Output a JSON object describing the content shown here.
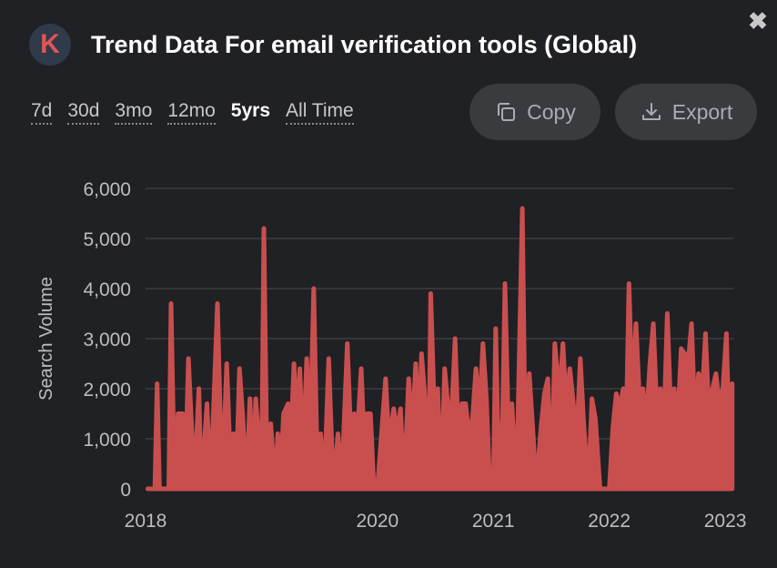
{
  "header": {
    "logo_letter": "K",
    "title": "Trend Data For email verification tools (Global)"
  },
  "ranges": [
    "7d",
    "30d",
    "3mo",
    "12mo",
    "5yrs",
    "All Time"
  ],
  "active_range": "5yrs",
  "buttons": {
    "copy": "Copy",
    "export": "Export"
  },
  "colors": {
    "background": "#202124",
    "series": "#c94f4f",
    "button_bg": "#3a3b3e"
  },
  "icons": [
    "close-icon",
    "copy-icon",
    "download-icon"
  ],
  "chart_data": {
    "type": "area",
    "ylabel": "Search Volume",
    "xlabel": "",
    "x_range": [
      2018.0,
      2023.07
    ],
    "ylim": [
      0,
      6000
    ],
    "y_ticks": [
      0,
      1000,
      2000,
      3000,
      4000,
      5000,
      6000
    ],
    "y_tick_labels": [
      "0",
      "1,000",
      "2,000",
      "3,000",
      "4,000",
      "5,000",
      "6,000"
    ],
    "x_ticks": [
      2018,
      2020,
      2021,
      2022,
      2023
    ],
    "x_tick_labels": [
      "2018",
      "2020",
      "2021",
      "2022",
      "2023"
    ],
    "grid": true,
    "legend": "none",
    "series": [
      {
        "points": [
          [
            2018.02,
            0
          ],
          [
            2018.08,
            0
          ],
          [
            2018.1,
            2100
          ],
          [
            2018.12,
            0
          ],
          [
            2018.2,
            0
          ],
          [
            2018.22,
            3700
          ],
          [
            2018.25,
            0
          ],
          [
            2018.28,
            1500
          ],
          [
            2018.32,
            1500
          ],
          [
            2018.34,
            0
          ],
          [
            2018.37,
            2600
          ],
          [
            2018.4,
            1100
          ],
          [
            2018.42,
            0
          ],
          [
            2018.46,
            2000
          ],
          [
            2018.48,
            0
          ],
          [
            2018.53,
            1700
          ],
          [
            2018.56,
            0
          ],
          [
            2018.62,
            3700
          ],
          [
            2018.66,
            0
          ],
          [
            2018.7,
            2500
          ],
          [
            2018.74,
            0
          ],
          [
            2018.76,
            1100
          ],
          [
            2018.78,
            0
          ],
          [
            2018.81,
            2400
          ],
          [
            2018.84,
            1400
          ],
          [
            2018.87,
            0
          ],
          [
            2018.9,
            1800
          ],
          [
            2018.93,
            0
          ],
          [
            2018.95,
            1800
          ],
          [
            2018.97,
            1200
          ],
          [
            2019.0,
            0
          ],
          [
            2019.02,
            5200
          ],
          [
            2019.05,
            0
          ],
          [
            2019.08,
            1300
          ],
          [
            2019.12,
            0
          ],
          [
            2019.14,
            1100
          ],
          [
            2019.16,
            0
          ],
          [
            2019.19,
            1500
          ],
          [
            2019.23,
            1700
          ],
          [
            2019.25,
            800
          ],
          [
            2019.28,
            2500
          ],
          [
            2019.3,
            1200
          ],
          [
            2019.33,
            2400
          ],
          [
            2019.36,
            600
          ],
          [
            2019.39,
            2600
          ],
          [
            2019.42,
            1000
          ],
          [
            2019.45,
            4000
          ],
          [
            2019.48,
            600
          ],
          [
            2019.51,
            1100
          ],
          [
            2019.54,
            0
          ],
          [
            2019.58,
            2600
          ],
          [
            2019.62,
            0
          ],
          [
            2019.66,
            1100
          ],
          [
            2019.69,
            0
          ],
          [
            2019.74,
            2900
          ],
          [
            2019.77,
            1100
          ],
          [
            2019.8,
            1500
          ],
          [
            2019.83,
            1200
          ],
          [
            2019.86,
            2400
          ],
          [
            2019.89,
            700
          ],
          [
            2019.91,
            1500
          ],
          [
            2019.94,
            1500
          ],
          [
            2019.97,
            0
          ],
          [
            2020.0,
            0
          ],
          [
            2020.07,
            2200
          ],
          [
            2020.1,
            900
          ],
          [
            2020.14,
            1600
          ],
          [
            2020.17,
            1100
          ],
          [
            2020.2,
            1600
          ],
          [
            2020.23,
            0
          ],
          [
            2020.27,
            2200
          ],
          [
            2020.3,
            1100
          ],
          [
            2020.33,
            2500
          ],
          [
            2020.36,
            1100
          ],
          [
            2020.38,
            2700
          ],
          [
            2020.41,
            1800
          ],
          [
            2020.44,
            0
          ],
          [
            2020.46,
            3900
          ],
          [
            2020.49,
            1600
          ],
          [
            2020.52,
            2000
          ],
          [
            2020.55,
            0
          ],
          [
            2020.58,
            2400
          ],
          [
            2020.61,
            1600
          ],
          [
            2020.64,
            1500
          ],
          [
            2020.67,
            3000
          ],
          [
            2020.7,
            900
          ],
          [
            2020.73,
            1700
          ],
          [
            2020.76,
            1700
          ],
          [
            2020.79,
            1100
          ],
          [
            2020.82,
            1400
          ],
          [
            2020.85,
            2400
          ],
          [
            2020.88,
            1500
          ],
          [
            2020.91,
            2900
          ],
          [
            2020.94,
            1800
          ],
          [
            2020.97,
            0
          ],
          [
            2021.0,
            0
          ],
          [
            2021.02,
            3200
          ],
          [
            2021.05,
            0
          ],
          [
            2021.08,
            1400
          ],
          [
            2021.1,
            4100
          ],
          [
            2021.13,
            1200
          ],
          [
            2021.16,
            1700
          ],
          [
            2021.2,
            0
          ],
          [
            2021.25,
            5600
          ],
          [
            2021.28,
            0
          ],
          [
            2021.31,
            2300
          ],
          [
            2021.34,
            1200
          ],
          [
            2021.37,
            0
          ],
          [
            2021.41,
            1200
          ],
          [
            2021.44,
            1900
          ],
          [
            2021.47,
            2200
          ],
          [
            2021.5,
            0
          ],
          [
            2021.53,
            2900
          ],
          [
            2021.57,
            1800
          ],
          [
            2021.6,
            2900
          ],
          [
            2021.63,
            1600
          ],
          [
            2021.66,
            2400
          ],
          [
            2021.69,
            1700
          ],
          [
            2021.72,
            1000
          ],
          [
            2021.75,
            2600
          ],
          [
            2021.78,
            1300
          ],
          [
            2021.82,
            0
          ],
          [
            2021.85,
            1800
          ],
          [
            2021.88,
            1400
          ],
          [
            2021.92,
            0
          ],
          [
            2021.95,
            0
          ],
          [
            2022.0,
            0
          ],
          [
            2022.03,
            1200
          ],
          [
            2022.06,
            1900
          ],
          [
            2022.09,
            1600
          ],
          [
            2022.12,
            2000
          ],
          [
            2022.15,
            1700
          ],
          [
            2022.17,
            4100
          ],
          [
            2022.2,
            1800
          ],
          [
            2022.23,
            3300
          ],
          [
            2022.26,
            1800
          ],
          [
            2022.29,
            2000
          ],
          [
            2022.32,
            1300
          ],
          [
            2022.35,
            2500
          ],
          [
            2022.38,
            3300
          ],
          [
            2022.41,
            1600
          ],
          [
            2022.44,
            2000
          ],
          [
            2022.47,
            1200
          ],
          [
            2022.5,
            3500
          ],
          [
            2022.53,
            1600
          ],
          [
            2022.56,
            2000
          ],
          [
            2022.59,
            1300
          ],
          [
            2022.62,
            2800
          ],
          [
            2022.65,
            2700
          ],
          [
            2022.68,
            2500
          ],
          [
            2022.71,
            3300
          ],
          [
            2022.74,
            1300
          ],
          [
            2022.77,
            2300
          ],
          [
            2022.8,
            1800
          ],
          [
            2022.83,
            3100
          ],
          [
            2022.86,
            1500
          ],
          [
            2022.89,
            2000
          ],
          [
            2022.92,
            2300
          ],
          [
            2022.95,
            1700
          ],
          [
            2022.98,
            2000
          ],
          [
            2023.01,
            3100
          ],
          [
            2023.03,
            1400
          ],
          [
            2023.06,
            2100
          ]
        ]
      }
    ]
  }
}
